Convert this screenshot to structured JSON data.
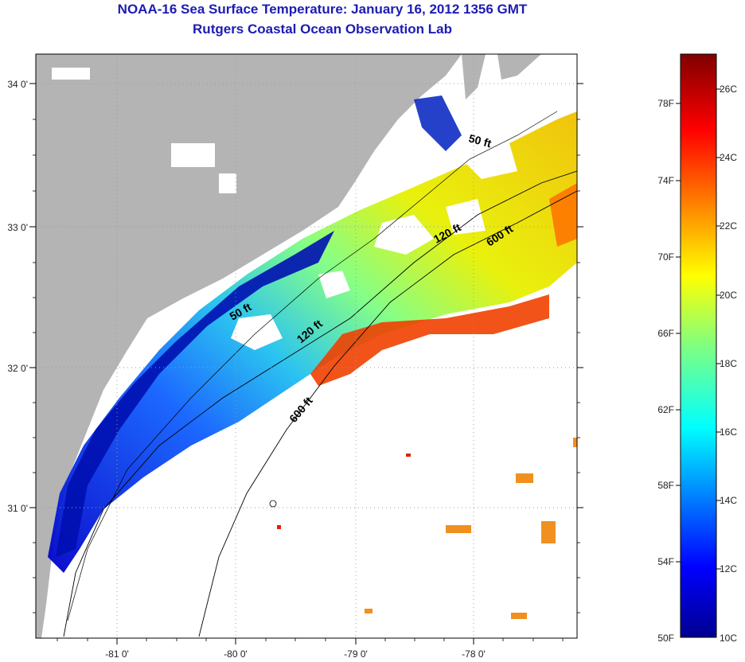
{
  "title": "NOAA-16 Sea Surface Temperature:  January 16, 2012 1356 GMT",
  "subtitle": "Rutgers Coastal Ocean Observation Lab",
  "axes": {
    "lon_labels": [
      "-81 0'",
      "-80 0'",
      "-79 0'",
      "-78 0'"
    ],
    "lat_labels": [
      "34 0'",
      "33 0'",
      "32 0'",
      "31 0'"
    ]
  },
  "contours": {
    "c50a": "50 ft",
    "c50b": "50 ft",
    "c120a": "120 ft",
    "c120b": "120 ft",
    "c600a": "600 ft",
    "c600b": "600 ft"
  },
  "colorbar": {
    "f_labels": [
      "78F",
      "74F",
      "70F",
      "66F",
      "62F",
      "58F",
      "54F",
      "50F"
    ],
    "c_labels": [
      "26C",
      "24C",
      "22C",
      "20C",
      "18C",
      "16C",
      "14C",
      "12C",
      "10C"
    ],
    "colors": [
      "#00008f",
      "#0000ff",
      "#0080ff",
      "#00ffff",
      "#80ff80",
      "#ffff00",
      "#ff8000",
      "#ff0000",
      "#800000"
    ]
  },
  "land_color": "#b4b4b4"
}
